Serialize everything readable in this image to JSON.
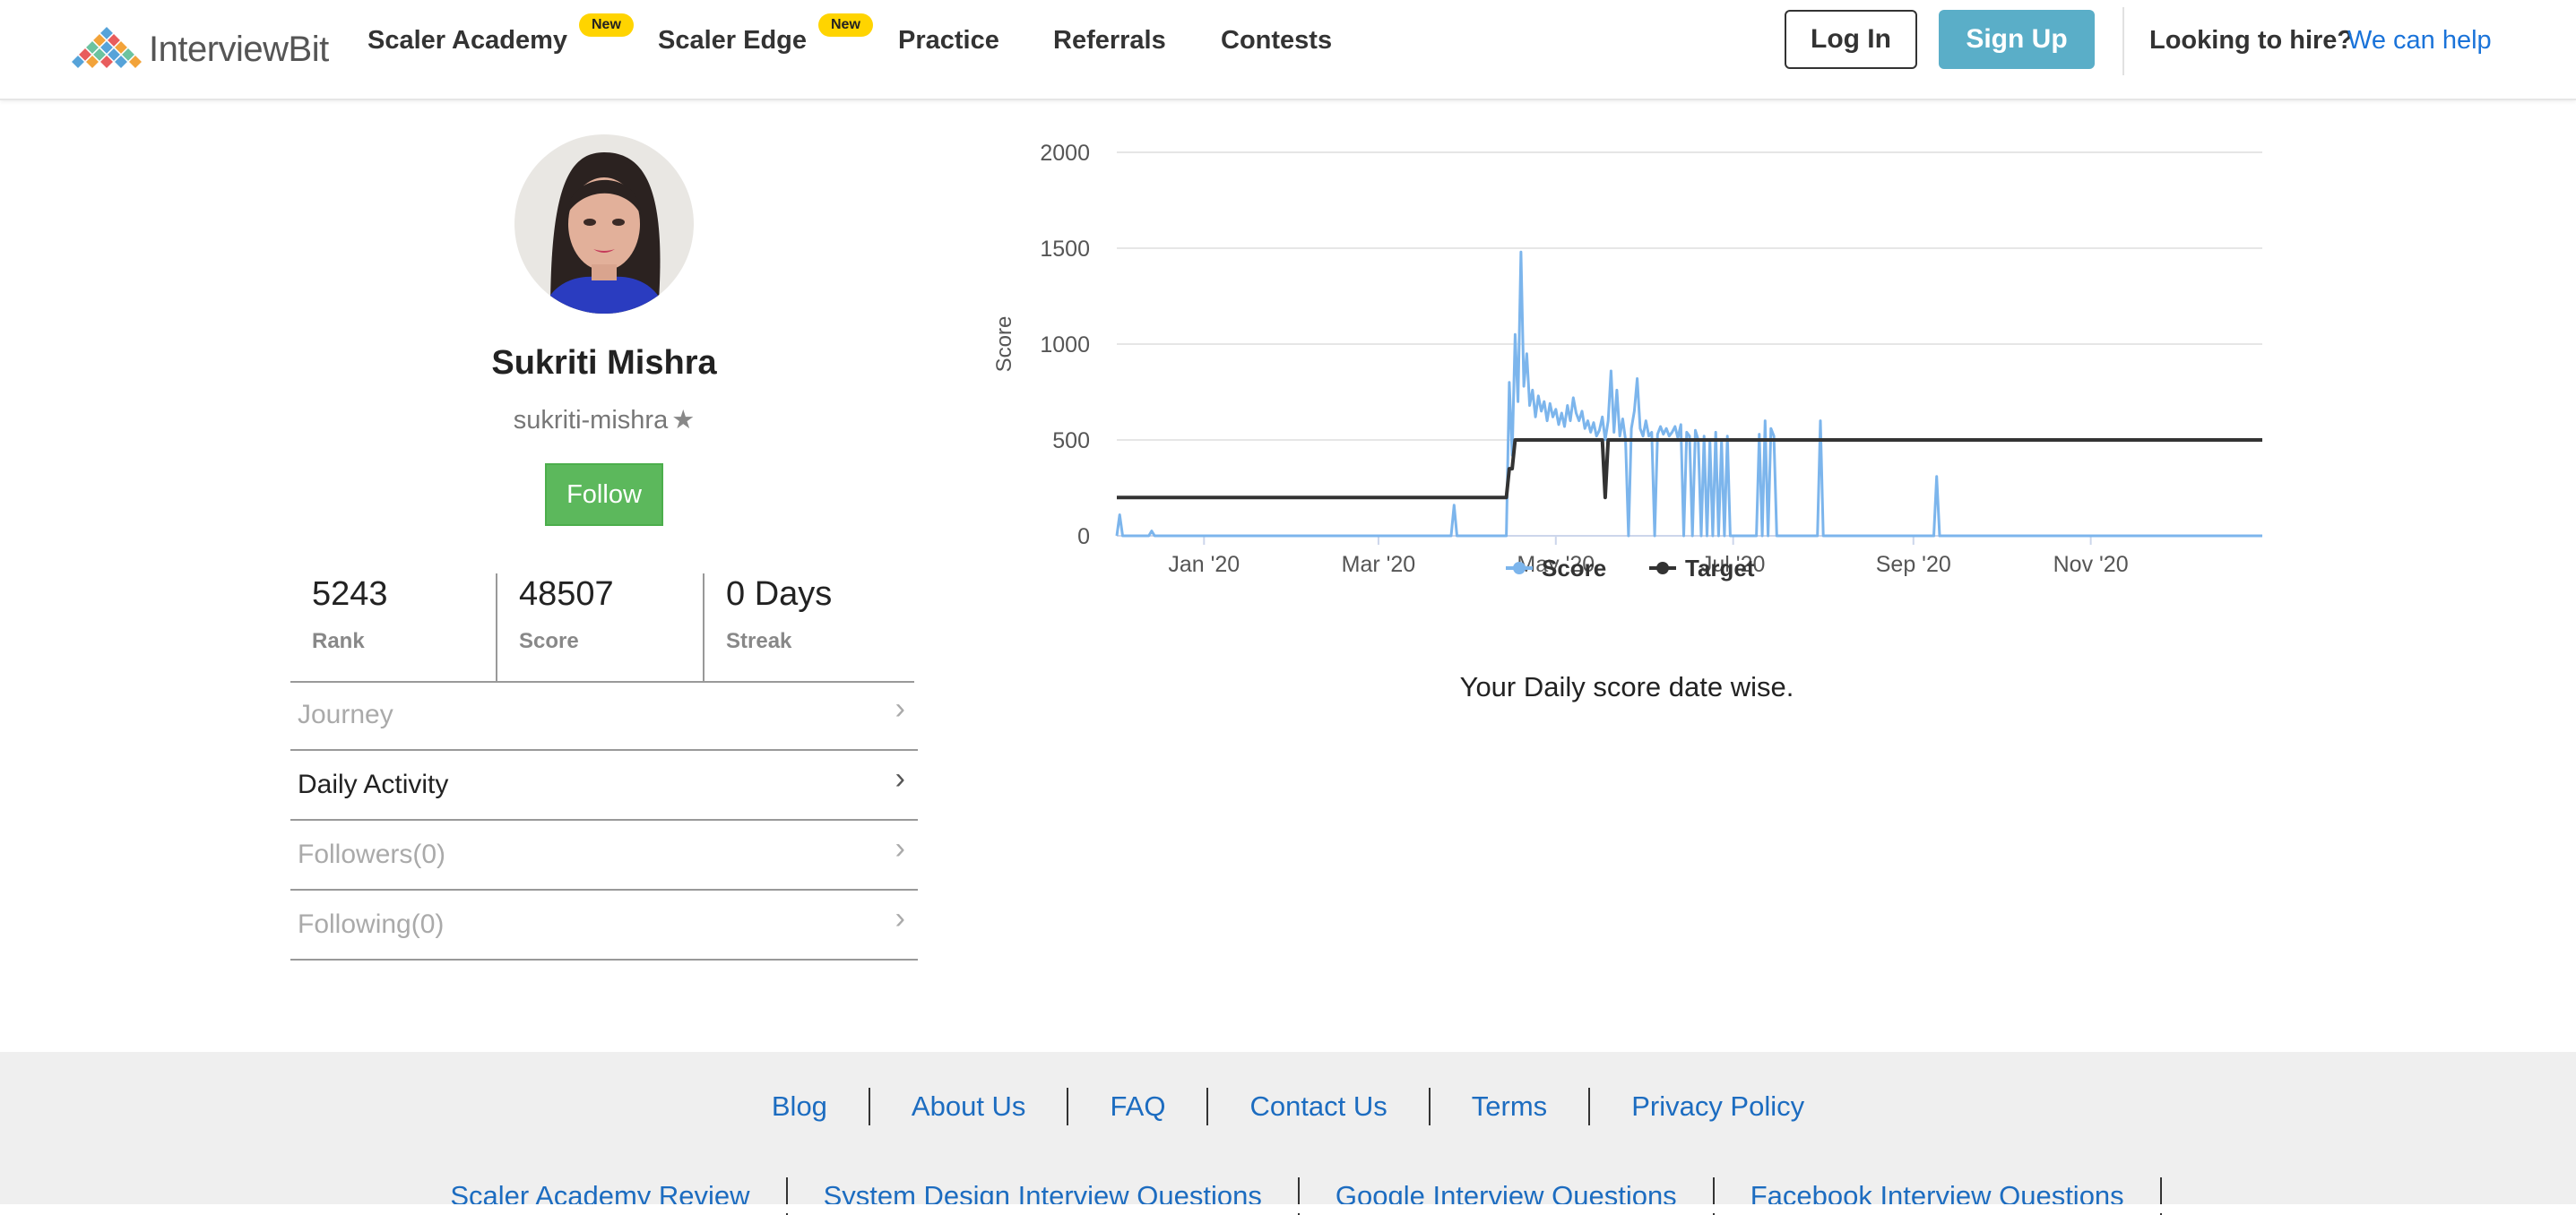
{
  "nav": {
    "logo_text": "InterviewBit",
    "links": [
      {
        "label": "Scaler Academy",
        "badge": "New"
      },
      {
        "label": "Scaler Edge",
        "badge": "New"
      },
      {
        "label": "Practice"
      },
      {
        "label": "Referrals"
      },
      {
        "label": "Contests"
      }
    ],
    "login_label": "Log In",
    "signup_label": "Sign Up",
    "hire_text": "Looking to hire?",
    "hire_link": "We can help"
  },
  "profile": {
    "name": "Sukriti Mishra",
    "handle": "sukriti-mishra",
    "follow_label": "Follow",
    "stats": [
      {
        "value": "5243",
        "label": "Rank"
      },
      {
        "value": "48507",
        "label": "Score"
      },
      {
        "value": "0 Days",
        "label": "Streak"
      }
    ],
    "menu": [
      {
        "label": "Journey"
      },
      {
        "label": "Daily Activity"
      },
      {
        "label": "Followers(0)"
      },
      {
        "label": "Following(0)"
      }
    ]
  },
  "chart_data": {
    "type": "line",
    "title": "",
    "xlabel": "",
    "ylabel": "Score",
    "ylim": [
      0,
      2000
    ],
    "yticks": [
      0,
      500,
      1000,
      1500,
      2000
    ],
    "x_range": [
      "2019-12-02",
      "2020-12-30"
    ],
    "xticks": [
      {
        "date": "2020-01-01",
        "label": "Jan '20"
      },
      {
        "date": "2020-03-01",
        "label": "Mar '20"
      },
      {
        "date": "2020-05-01",
        "label": "May '20"
      },
      {
        "date": "2020-07-01",
        "label": "Jul '20"
      },
      {
        "date": "2020-09-01",
        "label": "Sep '20"
      },
      {
        "date": "2020-11-01",
        "label": "Nov '20"
      }
    ],
    "grid": true,
    "legend": "bottom-center",
    "series": [
      {
        "name": "Score",
        "color": "#7cb5ec",
        "points": [
          [
            "2019-12-02",
            0
          ],
          [
            "2019-12-03",
            110
          ],
          [
            "2019-12-04",
            0
          ],
          [
            "2019-12-13",
            0
          ],
          [
            "2019-12-14",
            25
          ],
          [
            "2019-12-15",
            0
          ],
          [
            "2020-03-26",
            0
          ],
          [
            "2020-03-27",
            160
          ],
          [
            "2020-03-28",
            0
          ],
          [
            "2020-04-14",
            0
          ],
          [
            "2020-04-15",
            800
          ],
          [
            "2020-04-16",
            420
          ],
          [
            "2020-04-17",
            1050
          ],
          [
            "2020-04-18",
            700
          ],
          [
            "2020-04-19",
            1480
          ],
          [
            "2020-04-20",
            780
          ],
          [
            "2020-04-21",
            950
          ],
          [
            "2020-04-22",
            680
          ],
          [
            "2020-04-23",
            760
          ],
          [
            "2020-04-24",
            620
          ],
          [
            "2020-04-25",
            730
          ],
          [
            "2020-04-26",
            650
          ],
          [
            "2020-04-27",
            700
          ],
          [
            "2020-04-28",
            600
          ],
          [
            "2020-04-29",
            690
          ],
          [
            "2020-04-30",
            620
          ],
          [
            "2020-05-01",
            660
          ],
          [
            "2020-05-02",
            580
          ],
          [
            "2020-05-03",
            640
          ],
          [
            "2020-05-04",
            570
          ],
          [
            "2020-05-05",
            680
          ],
          [
            "2020-05-06",
            600
          ],
          [
            "2020-05-07",
            720
          ],
          [
            "2020-05-08",
            640
          ],
          [
            "2020-05-09",
            600
          ],
          [
            "2020-05-10",
            650
          ],
          [
            "2020-05-11",
            560
          ],
          [
            "2020-05-12",
            600
          ],
          [
            "2020-05-13",
            540
          ],
          [
            "2020-05-14",
            590
          ],
          [
            "2020-05-15",
            520
          ],
          [
            "2020-05-16",
            550
          ],
          [
            "2020-05-17",
            620
          ],
          [
            "2020-05-18",
            500
          ],
          [
            "2020-05-19",
            600
          ],
          [
            "2020-05-20",
            860
          ],
          [
            "2020-05-21",
            540
          ],
          [
            "2020-05-22",
            760
          ],
          [
            "2020-05-23",
            520
          ],
          [
            "2020-05-24",
            610
          ],
          [
            "2020-05-25",
            500
          ],
          [
            "2020-05-26",
            0
          ],
          [
            "2020-05-27",
            560
          ],
          [
            "2020-05-28",
            650
          ],
          [
            "2020-05-29",
            820
          ],
          [
            "2020-05-30",
            560
          ],
          [
            "2020-05-31",
            520
          ],
          [
            "2020-06-01",
            600
          ],
          [
            "2020-06-02",
            520
          ],
          [
            "2020-06-03",
            540
          ],
          [
            "2020-06-04",
            0
          ],
          [
            "2020-06-05",
            530
          ],
          [
            "2020-06-06",
            570
          ],
          [
            "2020-06-07",
            530
          ],
          [
            "2020-06-08",
            560
          ],
          [
            "2020-06-09",
            520
          ],
          [
            "2020-06-10",
            540
          ],
          [
            "2020-06-11",
            570
          ],
          [
            "2020-06-12",
            510
          ],
          [
            "2020-06-13",
            580
          ],
          [
            "2020-06-14",
            0
          ],
          [
            "2020-06-15",
            540
          ],
          [
            "2020-06-16",
            520
          ],
          [
            "2020-06-17",
            0
          ],
          [
            "2020-06-18",
            550
          ],
          [
            "2020-06-19",
            500
          ],
          [
            "2020-06-20",
            0
          ],
          [
            "2020-06-21",
            520
          ],
          [
            "2020-06-22",
            0
          ],
          [
            "2020-06-23",
            500
          ],
          [
            "2020-06-24",
            0
          ],
          [
            "2020-06-25",
            540
          ],
          [
            "2020-06-26",
            0
          ],
          [
            "2020-06-27",
            500
          ],
          [
            "2020-06-28",
            0
          ],
          [
            "2020-06-29",
            520
          ],
          [
            "2020-06-30",
            0
          ],
          [
            "2020-07-09",
            0
          ],
          [
            "2020-07-10",
            530
          ],
          [
            "2020-07-11",
            0
          ],
          [
            "2020-07-12",
            600
          ],
          [
            "2020-07-13",
            0
          ],
          [
            "2020-07-14",
            560
          ],
          [
            "2020-07-15",
            520
          ],
          [
            "2020-07-16",
            0
          ],
          [
            "2020-07-30",
            0
          ],
          [
            "2020-07-31",
            600
          ],
          [
            "2020-08-01",
            0
          ],
          [
            "2020-09-08",
            0
          ],
          [
            "2020-09-09",
            310
          ],
          [
            "2020-09-10",
            0
          ],
          [
            "2020-12-30",
            0
          ]
        ]
      },
      {
        "name": "Target",
        "color": "#333333",
        "points": [
          [
            "2019-12-02",
            200
          ],
          [
            "2020-04-14",
            200
          ],
          [
            "2020-04-15",
            350
          ],
          [
            "2020-04-16",
            350
          ],
          [
            "2020-04-17",
            500
          ],
          [
            "2020-05-17",
            500
          ],
          [
            "2020-05-18",
            200
          ],
          [
            "2020-05-19",
            500
          ],
          [
            "2020-12-30",
            500
          ]
        ]
      }
    ]
  },
  "chart_caption": "Your Daily score date wise.",
  "footer": {
    "row1": [
      "Blog",
      "About Us",
      "FAQ",
      "Contact Us",
      "Terms",
      "Privacy Policy"
    ],
    "row2": [
      "Scaler Academy Review",
      "System Design Interview Questions",
      "Google Interview Questions",
      "Facebook Interview Questions"
    ]
  }
}
